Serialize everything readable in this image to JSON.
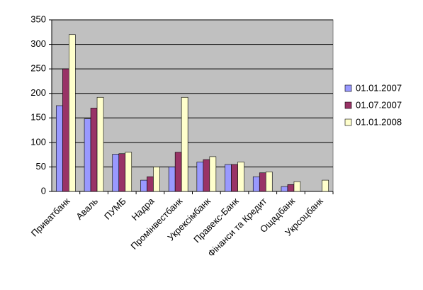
{
  "chart_data": {
    "type": "bar",
    "categories": [
      "Приватбанк",
      "Аваль",
      "ПУМБ",
      "Надра",
      "Промінвестбанк",
      "Укрексімбанк",
      "Правекс-Банк",
      "Фінанси та Кредит",
      "Ощадбанк",
      "Укрсоцбанк"
    ],
    "series": [
      {
        "name": "01.01.2007",
        "color": "#9999ff",
        "values": [
          175,
          148,
          76,
          23,
          50,
          60,
          55,
          30,
          10,
          null
        ]
      },
      {
        "name": "01.07.2007",
        "color": "#993366",
        "values": [
          250,
          170,
          77,
          30,
          80,
          65,
          55,
          38,
          14,
          null
        ]
      },
      {
        "name": "01.01.2008",
        "color": "#ffffcc",
        "values": [
          320,
          192,
          80,
          50,
          192,
          71,
          60,
          40,
          20,
          23
        ]
      }
    ],
    "ylim": [
      0,
      350
    ],
    "yticks": [
      0,
      50,
      100,
      150,
      200,
      250,
      300,
      350
    ],
    "grid": true,
    "legend": "right"
  }
}
